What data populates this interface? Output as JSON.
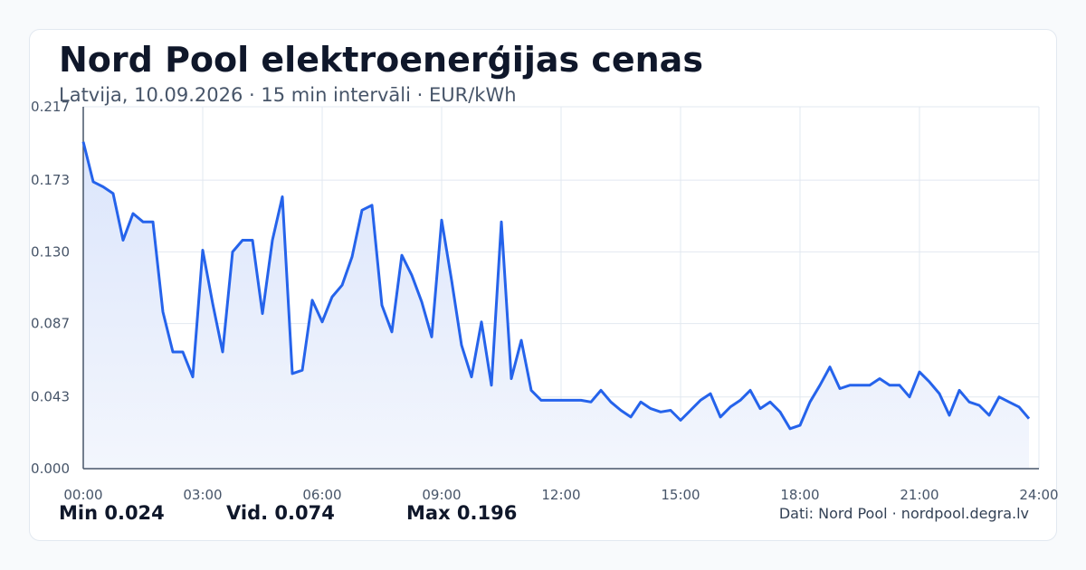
{
  "header": {
    "title": "Nord Pool elektroenerģijas cenas",
    "subtitle": "Latvija, 10.09.2026 · 15 min intervāli · EUR/kWh"
  },
  "stats": {
    "min": "Min 0.024",
    "avg": "Vid. 0.074",
    "max": "Max 0.196"
  },
  "footer": {
    "source": "Dati: Nord Pool · nordpool.degra.lv"
  },
  "colors": {
    "line": "#2563eb",
    "fill_top": "#dbe5fb",
    "fill_bottom": "#f3f6fd",
    "grid": "#e2e8f0",
    "axis": "#475569",
    "tick_text": "#475569"
  },
  "chart_data": {
    "type": "area",
    "title": "",
    "xlabel": "",
    "ylabel": "",
    "grid": true,
    "xlim": [
      0,
      24
    ],
    "ylim": [
      0,
      0.217
    ],
    "y_ticks": [
      0.0,
      0.043,
      0.087,
      0.13,
      0.173,
      0.217
    ],
    "y_tick_labels": [
      "0.000",
      "0.043",
      "0.087",
      "0.130",
      "0.173",
      "0.217"
    ],
    "x_ticks": [
      0,
      3,
      6,
      9,
      12,
      15,
      18,
      21,
      24
    ],
    "x_tick_labels": [
      "00:00",
      "03:00",
      "06:00",
      "09:00",
      "12:00",
      "15:00",
      "18:00",
      "21:00",
      "24:00"
    ],
    "series": [
      {
        "x": [
          0,
          0.25,
          0.5,
          0.75,
          1,
          1.25,
          1.5,
          1.75,
          2,
          2.25,
          2.5,
          2.75,
          3,
          3.25,
          3.5,
          3.75,
          4,
          4.25,
          4.5,
          4.75,
          5,
          5.25,
          5.5,
          5.75,
          6,
          6.25,
          6.5,
          6.75,
          7,
          7.25,
          7.5,
          7.75,
          8,
          8.25,
          8.5,
          8.75,
          9,
          9.25,
          9.5,
          9.75,
          10,
          10.25,
          10.5,
          10.75,
          11,
          11.25,
          11.5,
          11.75,
          12,
          12.25,
          12.5,
          12.75,
          13,
          13.25,
          13.5,
          13.75,
          14,
          14.25,
          14.5,
          14.75,
          15,
          15.25,
          15.5,
          15.75,
          16,
          16.25,
          16.5,
          16.75,
          17,
          17.25,
          17.5,
          17.75,
          18,
          18.25,
          18.5,
          18.75,
          19,
          19.25,
          19.5,
          19.75,
          20,
          20.25,
          20.5,
          20.75,
          21,
          21.25,
          21.5,
          21.75,
          22,
          22.25,
          22.5,
          22.75,
          23,
          23.25,
          23.5,
          23.75
        ],
        "values": [
          0.196,
          0.172,
          0.169,
          0.165,
          0.137,
          0.153,
          0.148,
          0.148,
          0.094,
          0.07,
          0.07,
          0.055,
          0.131,
          0.099,
          0.07,
          0.13,
          0.137,
          0.137,
          0.093,
          0.137,
          0.163,
          0.057,
          0.059,
          0.101,
          0.088,
          0.103,
          0.11,
          0.127,
          0.155,
          0.158,
          0.098,
          0.082,
          0.128,
          0.116,
          0.1,
          0.079,
          0.149,
          0.113,
          0.074,
          0.055,
          0.088,
          0.05,
          0.148,
          0.054,
          0.077,
          0.047,
          0.041,
          0.041,
          0.041,
          0.041,
          0.041,
          0.04,
          0.047,
          0.04,
          0.035,
          0.031,
          0.04,
          0.036,
          0.034,
          0.035,
          0.029,
          0.035,
          0.041,
          0.045,
          0.031,
          0.037,
          0.041,
          0.047,
          0.036,
          0.04,
          0.034,
          0.024,
          0.026,
          0.04,
          0.05,
          0.061,
          0.048,
          0.05,
          0.05,
          0.05,
          0.054,
          0.05,
          0.05,
          0.043,
          0.058,
          0.052,
          0.045,
          0.032,
          0.047,
          0.04,
          0.038,
          0.032,
          0.043,
          0.04,
          0.037,
          0.03
        ]
      }
    ]
  }
}
